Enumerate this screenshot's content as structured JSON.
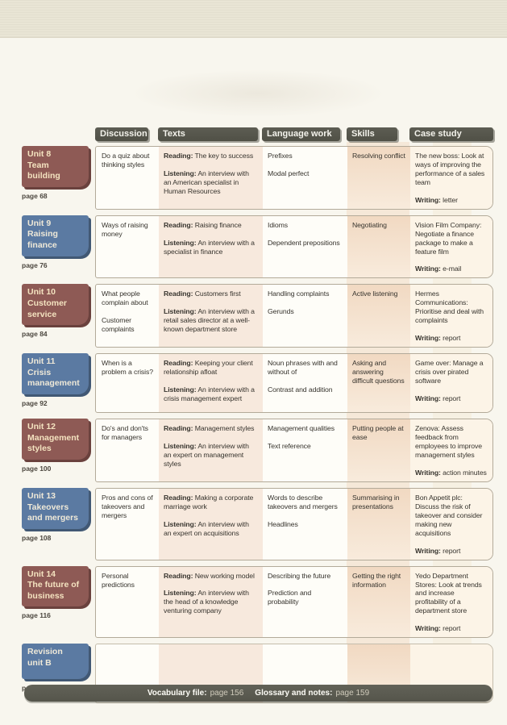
{
  "header": {
    "columns": [
      "Discussion",
      "Texts",
      "Language work",
      "Skills",
      "Case study"
    ]
  },
  "footer": {
    "vocab_label": "Vocabulary file:",
    "vocab_page": "page 156",
    "glossary_label": "Glossary and notes:",
    "glossary_page": "page 159"
  },
  "colors": {
    "maroon_tab": "#8e5a55",
    "blue_tab": "#5b7aa2",
    "header_tab": "#55554b",
    "texts_tint": "#f7e9dd",
    "skills_tint": "#f1d9c2"
  },
  "units": [
    {
      "title": "Unit 8\nTeam building",
      "page": "page 68",
      "tab_color": "maroon",
      "discussion": "Do a quiz about thinking styles",
      "texts": "Reading: The key to success\n\nListening: An interview with an American specialist in Human Resources",
      "language_work": "Prefixes\n\nModal perfect",
      "skills": "Resolving conflict",
      "case_study": "The new boss: Look at ways of improving the performance of a sales team\n\nWriting: letter"
    },
    {
      "title": "Unit 9\nRaising finance",
      "page": "page 76",
      "tab_color": "blue",
      "discussion": "Ways of raising money",
      "texts": "Reading: Raising finance\n\nListening: An interview with a specialist in finance",
      "language_work": "Idioms\n\nDependent prepositions",
      "skills": "Negotiating",
      "case_study": "Vision Film Company: Negotiate a finance package to make a feature film\n\nWriting: e-mail"
    },
    {
      "title": "Unit 10\nCustomer service",
      "page": "page 84",
      "tab_color": "maroon",
      "discussion": "What people complain about\n\nCustomer complaints",
      "texts": "Reading: Customers first\n\nListening: An interview with a retail sales director at a well-known department store",
      "language_work": "Handling complaints\n\nGerunds",
      "skills": "Active listening",
      "case_study": "Hermes Communications: Prioritise and deal with complaints\n\nWriting: report"
    },
    {
      "title": "Unit 11\nCrisis management",
      "page": "page 92",
      "tab_color": "blue",
      "discussion": "When is a problem a crisis?",
      "texts": "Reading: Keeping your client relationship afloat\n\nListening: An interview with a crisis management expert",
      "language_work": "Noun phrases with and without of\n\nContrast and addition",
      "skills": "Asking and answering difficult questions",
      "case_study": "Game over: Manage a crisis over pirated software\n\nWriting: report"
    },
    {
      "title": "Unit 12\nManagement styles",
      "page": "page 100",
      "tab_color": "maroon",
      "discussion": "Do's and don'ts for managers",
      "texts": "Reading: Management styles\n\nListening: An interview with an expert on management styles",
      "language_work": "Management qualities\n\nText reference",
      "skills": "Putting people at ease",
      "case_study": "Zenova: Assess feedback from employees to improve management styles\n\nWriting: action minutes"
    },
    {
      "title": "Unit 13\nTakeovers and mergers",
      "page": "page 108",
      "tab_color": "blue",
      "discussion": "Pros and cons of takeovers and mergers",
      "texts": "Reading: Making a corporate marriage work\n\nListening: An interview with an expert on acquisitions",
      "language_work": "Words to describe takeovers and mergers\n\nHeadlines",
      "skills": "Summarising in presentations",
      "case_study": "Bon Appetit plc: Discuss the risk of takeover and consider making new acquisitions\n\nWriting: report"
    },
    {
      "title": "Unit 14\nThe future of business",
      "page": "page 116",
      "tab_color": "maroon",
      "discussion": "Personal predictions",
      "texts": "Reading: New working model\n\nListening: An interview with the head of a knowledge venturing company",
      "language_work": "Describing the future\n\nPrediction and probability",
      "skills": "Getting the right information",
      "case_study": "Yedo Department Stores: Look at trends and increase profitability of a department store\n\nWriting: report"
    },
    {
      "title": "Revision\nunit B",
      "page": "page 124",
      "tab_color": "blue",
      "discussion": "",
      "texts": "",
      "language_work": "",
      "skills": "",
      "case_study": ""
    }
  ]
}
